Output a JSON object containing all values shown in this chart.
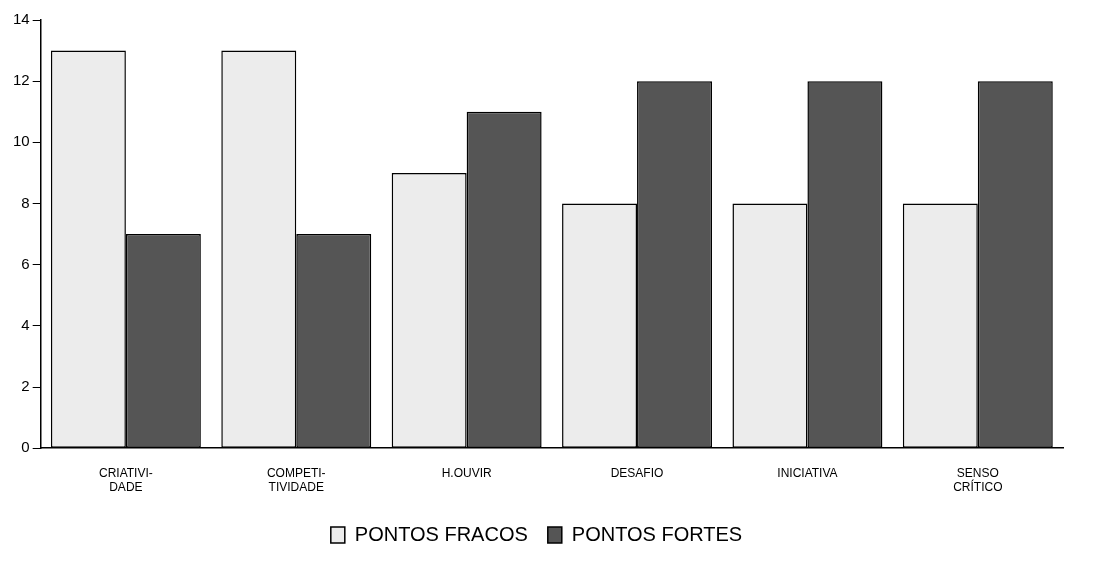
{
  "chart_data": {
    "type": "bar",
    "categories": [
      "CRIATIVI-\nDADE",
      "COMPETI-\nTIVIDADE",
      "H.OUVIR",
      "DESAFIO",
      "INICIATIVA",
      "SENSO\nCRÍTICO"
    ],
    "series": [
      {
        "name": "PONTOS FRACOS",
        "color": "#ececec",
        "values": [
          13,
          13,
          9,
          8,
          8,
          8
        ]
      },
      {
        "name": "PONTOS FORTES",
        "color": "#555555",
        "values": [
          7,
          7,
          11,
          12,
          12,
          12
        ]
      }
    ],
    "ylim": [
      0,
      14
    ],
    "yticks": [
      0,
      2,
      4,
      6,
      8,
      10,
      12,
      14
    ],
    "grid": false,
    "legend": "bottom"
  }
}
